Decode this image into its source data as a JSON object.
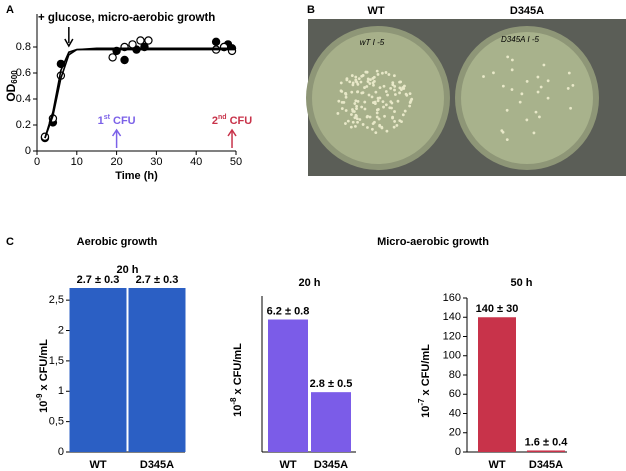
{
  "panel_labels": [
    "A",
    "B",
    "C"
  ],
  "panel_b": {
    "labels": [
      "WT",
      "D345A"
    ],
    "plate_writing": [
      "wT I -5",
      "D345A I -5"
    ]
  },
  "panel_c": {
    "aerobic": "Aerobic growth",
    "micro": "Micro-aerobic growth"
  },
  "chart_data": [
    {
      "type": "scatter",
      "title": "+ glucose, micro-aerobic growth",
      "title_arrow_x": 8,
      "xlabel": "Time (h)",
      "ylabel": "OD",
      "ylabel_sub": "600",
      "xlim": [
        0,
        50
      ],
      "ylim": [
        0,
        1
      ],
      "xticks": [
        0,
        10,
        20,
        30,
        40,
        50
      ],
      "yticks": [
        0,
        0.2,
        0.4,
        0.6,
        0.8
      ],
      "series": [
        {
          "marker": "filled",
          "color": "#000000",
          "x": [
            2,
            4,
            6,
            20,
            22,
            25,
            27,
            45,
            47,
            48,
            49
          ],
          "values": [
            0.1,
            0.22,
            0.67,
            0.77,
            0.7,
            0.78,
            0.8,
            0.84,
            0.8,
            0.82,
            0.79
          ]
        },
        {
          "marker": "open",
          "color": "#000000",
          "x": [
            2,
            4,
            6,
            19,
            22,
            24,
            26,
            28,
            45,
            47,
            49
          ],
          "values": [
            0.11,
            0.25,
            0.58,
            0.72,
            0.8,
            0.82,
            0.85,
            0.85,
            0.78,
            0.8,
            0.77
          ]
        },
        {
          "marker": "line",
          "color": "#000000",
          "x": [
            2,
            4,
            6,
            8,
            10,
            15,
            50
          ],
          "values": [
            0.1,
            0.3,
            0.62,
            0.76,
            0.78,
            0.78,
            0.78
          ]
        },
        {
          "marker": "line",
          "color": "#000000",
          "x": [
            2,
            4,
            6,
            8,
            10,
            15,
            50
          ],
          "values": [
            0.1,
            0.27,
            0.56,
            0.74,
            0.78,
            0.79,
            0.79
          ]
        }
      ],
      "annotations": [
        {
          "x": 20,
          "text": "1",
          "sup": "st",
          "suffix": " CFU",
          "color": "#7b61e8"
        },
        {
          "x": 49,
          "text": "2",
          "sup": "nd",
          "suffix": " CFU",
          "color": "#c8334a"
        }
      ]
    },
    {
      "type": "bar",
      "title": "20 h",
      "ylabel": "10",
      "ylabel_sup": "-9",
      "ylabel_suffix": " x CFU/mL",
      "categories": [
        "WT",
        "D345A"
      ],
      "values": [
        2.7,
        2.7
      ],
      "value_labels": [
        "2.7 ± 0.3",
        "2.7 ± 0.3"
      ],
      "color": "#2b5fc4",
      "ylim": [
        0,
        2.7
      ],
      "yticks": [
        0,
        {
          "value": 0.5,
          "label": "0,5"
        },
        1,
        {
          "value": 1.5,
          "label": "1,5"
        },
        2,
        {
          "value": 2.5,
          "label": "2,5"
        }
      ]
    },
    {
      "type": "bar",
      "title": "20 h",
      "ylabel": "10",
      "ylabel_sup": "-8",
      "ylabel_suffix": " x CFU/mL",
      "categories": [
        "WT",
        "D345A"
      ],
      "values": [
        6.2,
        2.8
      ],
      "value_labels": [
        "6.2 ± 0.8",
        "2.8 ± 0.5"
      ],
      "color": "#7b5ce8",
      "ylim": [
        0,
        7.3
      ],
      "yticks": []
    },
    {
      "type": "bar",
      "title": "50 h",
      "ylabel": "10",
      "ylabel_sup": "-7",
      "ylabel_suffix": " x CFU/mL",
      "categories": [
        "WT",
        "D345A"
      ],
      "values": [
        140,
        1.6
      ],
      "value_labels": [
        "140 ± 30",
        "1.6 ± 0.4"
      ],
      "color": "#c8334a",
      "ylim": [
        0,
        160
      ],
      "yticks": [
        0,
        20,
        40,
        60,
        80,
        100,
        120,
        140,
        160
      ]
    }
  ]
}
